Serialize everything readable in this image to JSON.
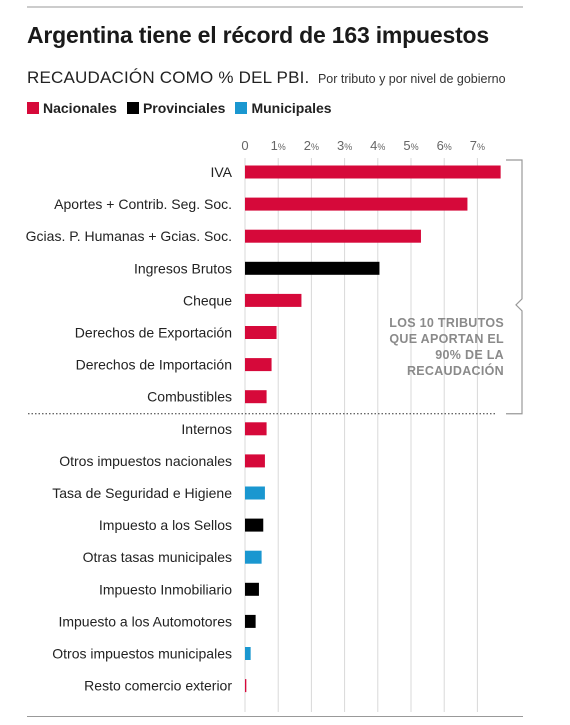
{
  "title": "Argentina tiene el récord de 163 impuestos",
  "subtitle": "RECAUDACIÓN COMO % DEL PBI.",
  "subtitle_detail": "Por tributo y por nivel de gobierno",
  "annotation": "LOS 10 TRIBUTOS QUE APORTAN EL 90% DE LA RECAUDACIÓN",
  "legend": [
    {
      "label": "Nacionales",
      "color": "#d6093a"
    },
    {
      "label": "Provinciales",
      "color": "#000000"
    },
    {
      "label": "Municipales",
      "color": "#1a97d0"
    }
  ],
  "chart_data": {
    "type": "bar",
    "orientation": "horizontal",
    "xlim": [
      0,
      7.7
    ],
    "x_ticks": [
      {
        "value": 0,
        "num": "0",
        "unit": ""
      },
      {
        "value": 1,
        "num": "1",
        "unit": "%"
      },
      {
        "value": 2,
        "num": "2",
        "unit": "%"
      },
      {
        "value": 3,
        "num": "3",
        "unit": "%"
      },
      {
        "value": 4,
        "num": "4",
        "unit": "%"
      },
      {
        "value": 5,
        "num": "5",
        "unit": "%"
      },
      {
        "value": 6,
        "num": "6",
        "unit": "%"
      },
      {
        "value": 7,
        "num": "7",
        "unit": "%"
      }
    ],
    "grid": true,
    "bars": [
      {
        "label": "IVA",
        "value": 7.7,
        "level": "Nacionales"
      },
      {
        "label": "Aportes + Contrib. Seg. Soc.",
        "value": 6.7,
        "level": "Nacionales"
      },
      {
        "label": "Gcias. P. Humanas + Gcias. Soc.",
        "value": 5.3,
        "level": "Nacionales"
      },
      {
        "label": "Ingresos Brutos",
        "value": 4.05,
        "level": "Provinciales"
      },
      {
        "label": "Cheque",
        "value": 1.7,
        "level": "Nacionales"
      },
      {
        "label": "Derechos de Exportación",
        "value": 0.95,
        "level": "Nacionales"
      },
      {
        "label": "Derechos de Importación",
        "value": 0.8,
        "level": "Nacionales"
      },
      {
        "label": "Combustibles",
        "value": 0.65,
        "level": "Nacionales"
      },
      {
        "label": "Internos",
        "value": 0.65,
        "level": "Nacionales"
      },
      {
        "label": "Otros impuestos nacionales",
        "value": 0.6,
        "level": "Nacionales"
      },
      {
        "label": "Tasa de Seguridad e Higiene",
        "value": 0.6,
        "level": "Municipales"
      },
      {
        "label": "Impuesto a los Sellos",
        "value": 0.55,
        "level": "Provinciales"
      },
      {
        "label": "Otras tasas municipales",
        "value": 0.5,
        "level": "Municipales"
      },
      {
        "label": "Impuesto Inmobiliario",
        "value": 0.42,
        "level": "Provinciales"
      },
      {
        "label": "Impuesto a los Automotores",
        "value": 0.32,
        "level": "Provinciales"
      },
      {
        "label": "Otros impuestos municipales",
        "value": 0.17,
        "level": "Municipales"
      },
      {
        "label": "Resto comercio exterior",
        "value": 0.04,
        "level": "Nacionales"
      }
    ],
    "top_group_size": 8
  }
}
